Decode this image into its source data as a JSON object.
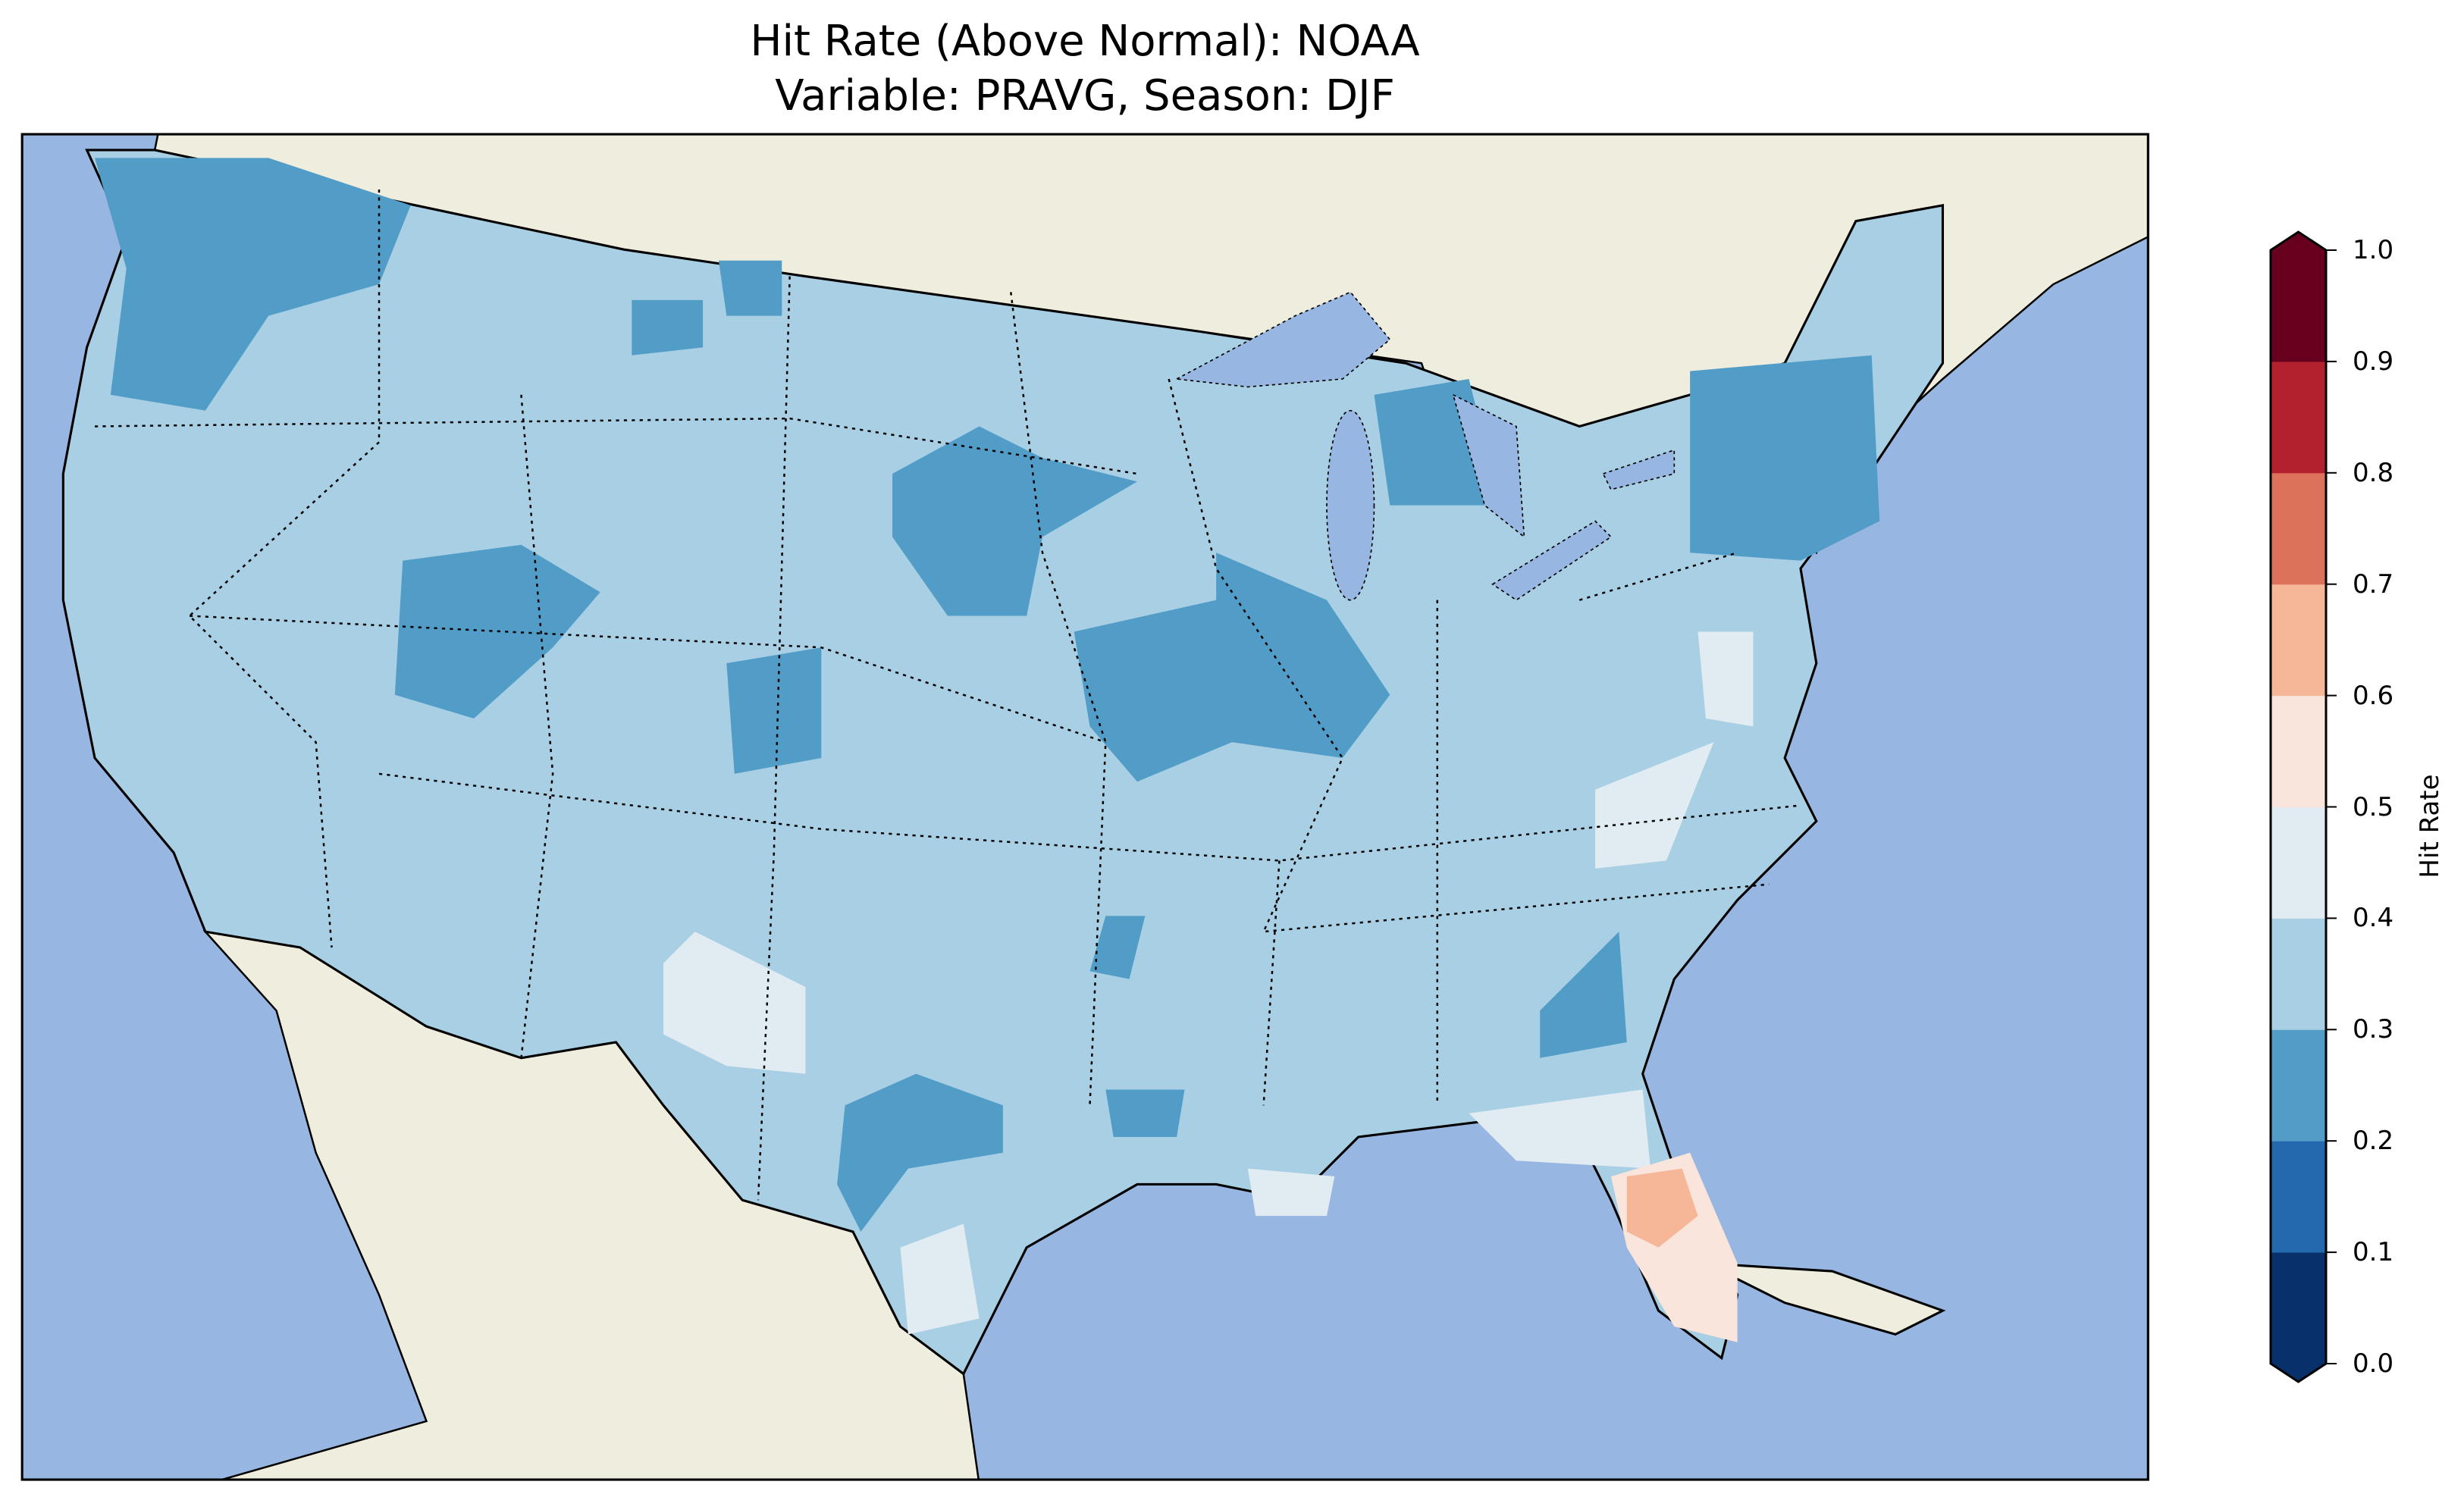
{
  "title": {
    "line1": "Hit Rate (Above Normal): NOAA",
    "line2": "Variable: PRAVG, Season: DJF"
  },
  "colors": {
    "ocean": "#97b6e1",
    "land": "#efedde",
    "lakes": "#97b6e1"
  },
  "chart_data": {
    "type": "heatmap",
    "title": "Hit Rate (Above Normal): NOAA\nVariable: PRAVG, Season: DJF",
    "colorbar": {
      "label": "Hit Rate",
      "ticks": [
        "0.0",
        "0.1",
        "0.2",
        "0.3",
        "0.4",
        "0.5",
        "0.6",
        "0.7",
        "0.8",
        "0.9",
        "1.0"
      ],
      "range": [
        0,
        1
      ],
      "extend": "both",
      "colors": [
        "#08306b",
        "#2469ad",
        "#529dc8",
        "#a8cfe3",
        "#e1ecf2",
        "#f9e5dc",
        "#f6b798",
        "#dd725a",
        "#b3212e",
        "#67001f"
      ]
    },
    "summary": {
      "dominant_range": [
        0.3,
        0.4
      ],
      "lower_areas_range": [
        0.2,
        0.3
      ],
      "higher_areas_range": [
        0.4,
        0.7
      ]
    }
  }
}
